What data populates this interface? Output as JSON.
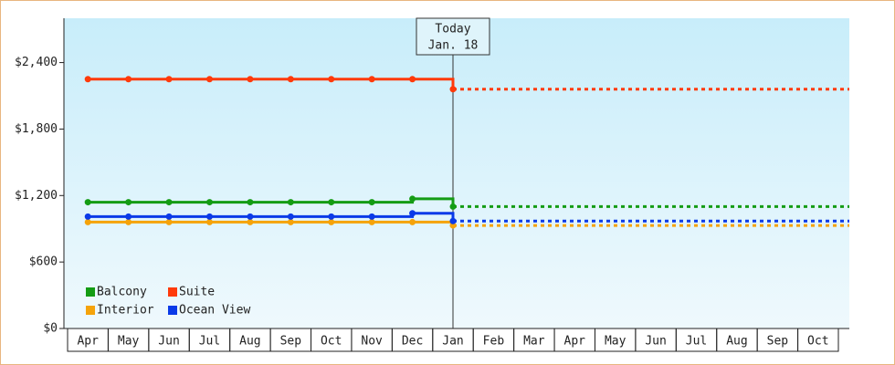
{
  "chart_data": {
    "type": "step",
    "categories": [
      "Apr",
      "May",
      "Jun",
      "Jul",
      "Aug",
      "Sep",
      "Oct",
      "Nov",
      "Dec",
      "Jan",
      "Feb",
      "Mar",
      "Apr",
      "May",
      "Jun",
      "Jul",
      "Aug",
      "Sep",
      "Oct"
    ],
    "series": [
      {
        "name": "Balcony",
        "color": "#149c14",
        "values": [
          1140,
          1140,
          1140,
          1140,
          1140,
          1140,
          1140,
          1140,
          1170,
          1100,
          null,
          null,
          null,
          null,
          null,
          null,
          null,
          null,
          null
        ]
      },
      {
        "name": "Suite",
        "color": "#ff3a0a",
        "values": [
          2250,
          2250,
          2250,
          2250,
          2250,
          2250,
          2250,
          2250,
          2250,
          2160,
          null,
          null,
          null,
          null,
          null,
          null,
          null,
          null,
          null
        ]
      },
      {
        "name": "Interior",
        "color": "#f5a30a",
        "values": [
          960,
          960,
          960,
          960,
          960,
          960,
          960,
          960,
          960,
          930,
          null,
          null,
          null,
          null,
          null,
          null,
          null,
          null,
          null
        ]
      },
      {
        "name": "Ocean View",
        "color": "#0a3ae8",
        "values": [
          1010,
          1010,
          1010,
          1010,
          1010,
          1010,
          1010,
          1010,
          1040,
          970,
          null,
          null,
          null,
          null,
          null,
          null,
          null,
          null,
          null
        ]
      }
    ],
    "ylim": [
      0,
      2800
    ],
    "yticks": [
      {
        "value": 0,
        "label": "$0"
      },
      {
        "value": 600,
        "label": "$600"
      },
      {
        "value": 1200,
        "label": "$1,200"
      },
      {
        "value": 1800,
        "label": "$1,800"
      },
      {
        "value": 2400,
        "label": "$2,400"
      }
    ],
    "annotation": [
      "Today",
      "Jan. 18"
    ],
    "legend": "bottom-left"
  }
}
